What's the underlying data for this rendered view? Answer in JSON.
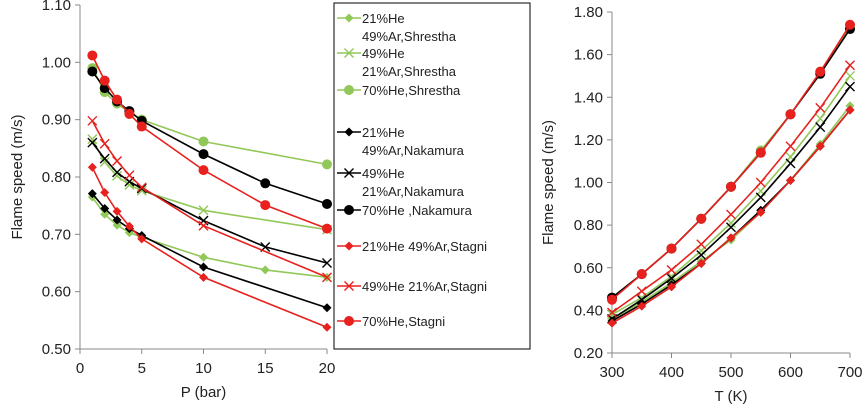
{
  "chart_data": [
    {
      "type": "line",
      "xlabel": "P (bar)",
      "ylabel": "Flame speed (m/s)",
      "xlim": [
        0,
        20
      ],
      "ylim": [
        0.5,
        1.1
      ],
      "xticks": [
        0,
        5,
        10,
        15,
        20
      ],
      "xtick_labels": [
        "0",
        "5",
        "10",
        "15",
        "20"
      ],
      "yticks": [
        0.5,
        0.6,
        0.7,
        0.8,
        0.9,
        1.0,
        1.1
      ],
      "ytick_labels": [
        "0.50",
        "0.60",
        "0.70",
        "0.80",
        "0.90",
        "1.00",
        "1.10"
      ],
      "grid": false,
      "legend_position": "right",
      "series": [
        {
          "name": "21%He 49%Ar,Shrestha",
          "legend_lines": [
            "21%He",
            "49%Ar,Shrestha"
          ],
          "color": "#92c85a",
          "marker": "diamond",
          "points": [
            [
              1,
              0.765
            ],
            [
              2,
              0.735
            ],
            [
              3,
              0.716
            ],
            [
              4,
              0.703
            ],
            [
              5,
              0.695
            ],
            [
              10,
              0.66
            ],
            [
              15,
              0.638
            ],
            [
              20,
              0.625
            ]
          ]
        },
        {
          "name": "49%He 21%Ar,Shrestha",
          "legend_lines": [
            "49%He",
            "21%Ar,Shrestha"
          ],
          "color": "#92c85a",
          "marker": "x",
          "points": [
            [
              1,
              0.866
            ],
            [
              2,
              0.826
            ],
            [
              3,
              0.802
            ],
            [
              4,
              0.786
            ],
            [
              5,
              0.776
            ],
            [
              10,
              0.742
            ],
            [
              20,
              0.708
            ]
          ]
        },
        {
          "name": "70%He,Shrestha",
          "legend_lines": [
            "70%He,Shrestha"
          ],
          "color": "#92c85a",
          "marker": "circle",
          "points": [
            [
              1,
              0.99
            ],
            [
              2,
              0.948
            ],
            [
              3,
              0.928
            ],
            [
              4,
              0.913
            ],
            [
              5,
              0.9
            ],
            [
              10,
              0.862
            ],
            [
              20,
              0.822
            ]
          ]
        },
        {
          "name": "21%He 49%Ar,Nakamura",
          "legend_lines": [
            "21%He",
            "49%Ar,Nakamura"
          ],
          "color": "#000000",
          "marker": "diamond",
          "points": [
            [
              1,
              0.771
            ],
            [
              2,
              0.745
            ],
            [
              3,
              0.725
            ],
            [
              4,
              0.71
            ],
            [
              5,
              0.698
            ],
            [
              10,
              0.643
            ],
            [
              20,
              0.572
            ]
          ]
        },
        {
          "name": "49%He 21%Ar,Nakamura",
          "legend_lines": [
            "49%He",
            "21%Ar,Nakamura"
          ],
          "color": "#000000",
          "marker": "x",
          "points": [
            [
              1,
              0.86
            ],
            [
              2,
              0.832
            ],
            [
              3,
              0.808
            ],
            [
              4,
              0.792
            ],
            [
              5,
              0.78
            ],
            [
              10,
              0.724
            ],
            [
              15,
              0.678
            ],
            [
              20,
              0.65
            ]
          ]
        },
        {
          "name": "70%He ,Nakamura",
          "legend_lines": [
            "70%He ,Nakamura"
          ],
          "color": "#000000",
          "marker": "circle",
          "points": [
            [
              1,
              0.984
            ],
            [
              2,
              0.955
            ],
            [
              3,
              0.932
            ],
            [
              4,
              0.915
            ],
            [
              5,
              0.898
            ],
            [
              10,
              0.84
            ],
            [
              15,
              0.789
            ],
            [
              20,
              0.753
            ]
          ]
        },
        {
          "name": "21%He 49%Ar,Stagni",
          "legend_lines": [
            "21%He 49%Ar,Stagni"
          ],
          "color": "#e8201e",
          "marker": "diamond",
          "points": [
            [
              1,
              0.817
            ],
            [
              2,
              0.773
            ],
            [
              3,
              0.74
            ],
            [
              4,
              0.714
            ],
            [
              5,
              0.692
            ],
            [
              10,
              0.625
            ],
            [
              20,
              0.538
            ]
          ]
        },
        {
          "name": "49%He 21%Ar,Stagni",
          "legend_lines": [
            "49%He 21%Ar,Stagni"
          ],
          "color": "#e8201e",
          "marker": "x",
          "points": [
            [
              1,
              0.898
            ],
            [
              2,
              0.858
            ],
            [
              3,
              0.828
            ],
            [
              4,
              0.803
            ],
            [
              5,
              0.782
            ],
            [
              10,
              0.715
            ],
            [
              20,
              0.625
            ]
          ]
        },
        {
          "name": "70%He,Stagni",
          "legend_lines": [
            "70%He,Stagni"
          ],
          "color": "#e8201e",
          "marker": "circle",
          "points": [
            [
              1,
              1.012
            ],
            [
              2,
              0.968
            ],
            [
              3,
              0.935
            ],
            [
              4,
              0.91
            ],
            [
              5,
              0.888
            ],
            [
              10,
              0.812
            ],
            [
              15,
              0.751
            ],
            [
              20,
              0.71
            ]
          ]
        }
      ]
    },
    {
      "type": "line",
      "xlabel": "T (K)",
      "ylabel": "Flame speed (m/s)",
      "xlim": [
        300,
        700
      ],
      "ylim": [
        0.2,
        1.8
      ],
      "xticks": [
        300,
        400,
        500,
        600,
        700
      ],
      "xtick_labels": [
        "300",
        "400",
        "500",
        "600",
        "700"
      ],
      "yticks": [
        0.2,
        0.4,
        0.6,
        0.8,
        1.0,
        1.2,
        1.4,
        1.6,
        1.8
      ],
      "ytick_labels": [
        "0.20",
        "0.40",
        "0.60",
        "0.80",
        "1.00",
        "1.20",
        "1.40",
        "1.60",
        "1.80"
      ],
      "grid": false,
      "series": [
        {
          "color": "#92c85a",
          "marker": "diamond",
          "points": [
            [
              300,
              0.36
            ],
            [
              350,
              0.44
            ],
            [
              400,
              0.53
            ],
            [
              450,
              0.63
            ],
            [
              500,
              0.73
            ],
            [
              550,
              0.86
            ],
            [
              600,
              1.01
            ],
            [
              650,
              1.18
            ],
            [
              700,
              1.36
            ]
          ]
        },
        {
          "color": "#92c85a",
          "marker": "x",
          "points": [
            [
              300,
              0.38
            ],
            [
              350,
              0.46
            ],
            [
              400,
              0.56
            ],
            [
              450,
              0.68
            ],
            [
              500,
              0.81
            ],
            [
              550,
              0.96
            ],
            [
              600,
              1.12
            ],
            [
              650,
              1.3
            ],
            [
              700,
              1.5
            ]
          ]
        },
        {
          "color": "#92c85a",
          "marker": "circle",
          "points": [
            [
              300,
              0.46
            ],
            [
              350,
              0.57
            ],
            [
              400,
              0.69
            ],
            [
              450,
              0.83
            ],
            [
              500,
              0.98
            ],
            [
              550,
              1.15
            ],
            [
              600,
              1.32
            ],
            [
              650,
              1.52
            ],
            [
              700,
              1.73
            ]
          ]
        },
        {
          "color": "#000000",
          "marker": "diamond",
          "points": [
            [
              300,
              0.35
            ],
            [
              350,
              0.43
            ],
            [
              400,
              0.52
            ],
            [
              450,
              0.62
            ],
            [
              500,
              0.74
            ],
            [
              550,
              0.87
            ],
            [
              600,
              1.01
            ],
            [
              650,
              1.17
            ],
            [
              700,
              1.34
            ]
          ]
        },
        {
          "color": "#000000",
          "marker": "x",
          "points": [
            [
              300,
              0.36
            ],
            [
              350,
              0.45
            ],
            [
              400,
              0.55
            ],
            [
              450,
              0.66
            ],
            [
              500,
              0.79
            ],
            [
              550,
              0.93
            ],
            [
              600,
              1.09
            ],
            [
              650,
              1.26
            ],
            [
              700,
              1.45
            ]
          ]
        },
        {
          "color": "#000000",
          "marker": "circle",
          "points": [
            [
              300,
              0.46
            ],
            [
              350,
              0.57
            ],
            [
              400,
              0.69
            ],
            [
              450,
              0.83
            ],
            [
              500,
              0.98
            ],
            [
              550,
              1.14
            ],
            [
              600,
              1.32
            ],
            [
              650,
              1.51
            ],
            [
              700,
              1.72
            ]
          ]
        },
        {
          "color": "#e8201e",
          "marker": "diamond",
          "points": [
            [
              300,
              0.34
            ],
            [
              350,
              0.42
            ],
            [
              400,
              0.51
            ],
            [
              450,
              0.62
            ],
            [
              500,
              0.74
            ],
            [
              550,
              0.86
            ],
            [
              600,
              1.01
            ],
            [
              650,
              1.17
            ],
            [
              700,
              1.34
            ]
          ]
        },
        {
          "color": "#e8201e",
          "marker": "x",
          "points": [
            [
              300,
              0.39
            ],
            [
              350,
              0.49
            ],
            [
              400,
              0.59
            ],
            [
              450,
              0.71
            ],
            [
              500,
              0.85
            ],
            [
              550,
              1.0
            ],
            [
              600,
              1.17
            ],
            [
              650,
              1.35
            ],
            [
              700,
              1.55
            ]
          ]
        },
        {
          "color": "#e8201e",
          "marker": "circle",
          "points": [
            [
              300,
              0.45
            ],
            [
              350,
              0.57
            ],
            [
              400,
              0.69
            ],
            [
              450,
              0.83
            ],
            [
              500,
              0.98
            ],
            [
              550,
              1.14
            ],
            [
              600,
              1.32
            ],
            [
              650,
              1.52
            ],
            [
              700,
              1.74
            ]
          ]
        }
      ]
    }
  ]
}
